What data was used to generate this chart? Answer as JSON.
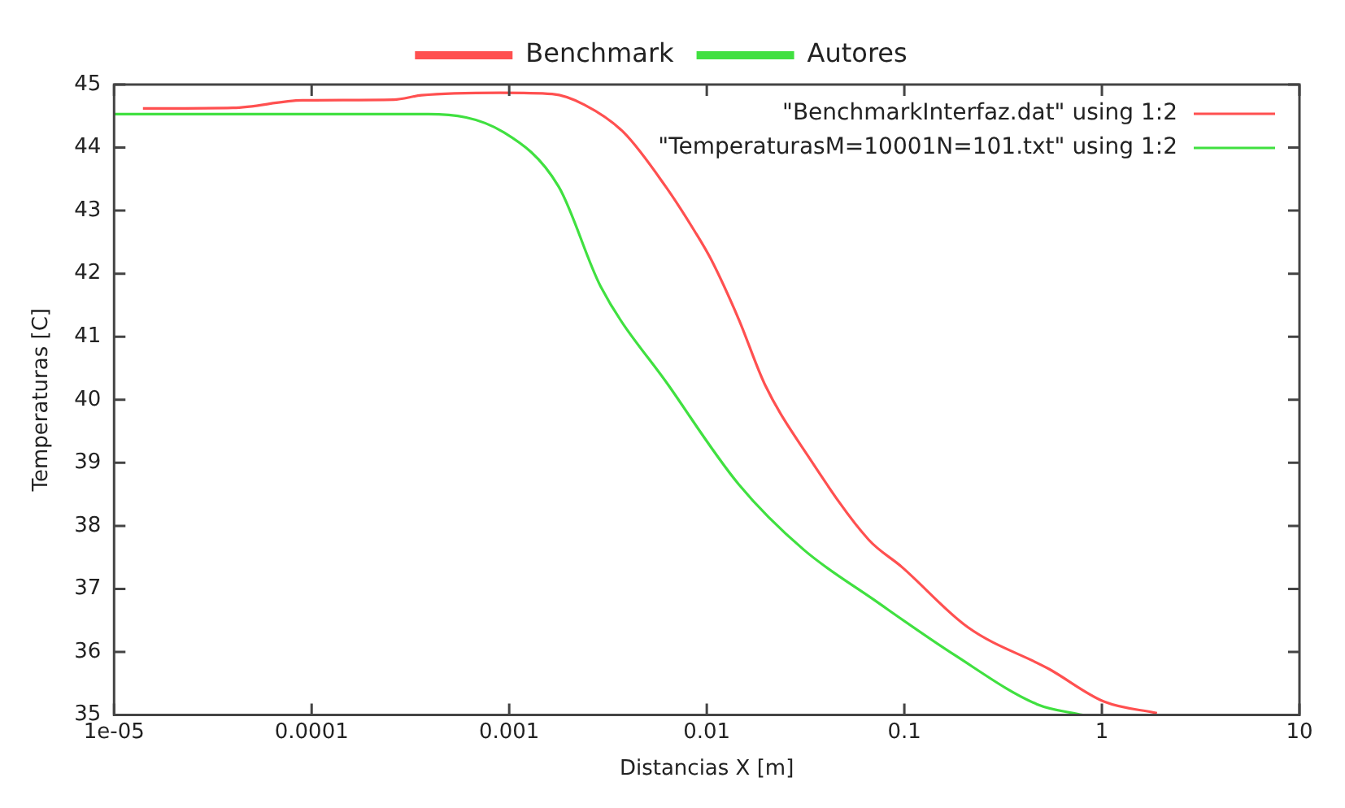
{
  "chart_data": {
    "type": "line",
    "xlabel": "Distancias X [m]",
    "ylabel": "Temperaturas [C]",
    "log": "x",
    "xlim": [
      1e-05,
      10
    ],
    "xticks": [
      {
        "value": 1e-05,
        "label": "1e-05"
      },
      0.0001,
      0.001,
      0.01,
      0.1,
      1,
      10
    ],
    "ylim": [
      35,
      45
    ],
    "yticks": [
      35,
      36,
      37,
      38,
      39,
      40,
      41,
      42,
      43,
      44,
      45
    ],
    "grid": false,
    "legend": "top",
    "marker": "none",
    "line_style": "solid",
    "annotations": [
      "\"BenchmarkInterfaz.dat\" using 1:2",
      "\"TemperaturasM=10001N=101.txt\" using 1:2"
    ],
    "series": [
      {
        "name": "Benchmark",
        "color": "#ff5050",
        "x": [
          1.4e-05,
          4e-05,
          9e-05,
          0.00026,
          0.00036,
          0.0009,
          0.00165,
          0.0024,
          0.0038,
          0.0062,
          0.0087,
          0.0105,
          0.0145,
          0.0197,
          0.033,
          0.066,
          0.097,
          0.21,
          0.54,
          1.03,
          1.9
        ],
        "values": [
          44.62,
          44.63,
          44.75,
          44.76,
          44.83,
          44.87,
          44.85,
          44.68,
          44.24,
          43.38,
          42.67,
          42.23,
          41.28,
          40.24,
          39.08,
          37.78,
          37.35,
          36.39,
          35.73,
          35.21,
          35.03
        ]
      },
      {
        "name": "Autores",
        "color": "#40e040",
        "x": [
          1e-05,
          0.00039,
          0.00094,
          0.00178,
          0.0029,
          0.0065,
          0.0145,
          0.031,
          0.07,
          0.18,
          0.47,
          0.8
        ],
        "values": [
          44.53,
          44.53,
          44.24,
          43.38,
          41.8,
          40.2,
          38.66,
          37.62,
          36.83,
          35.95,
          35.17,
          35.0
        ]
      }
    ]
  }
}
